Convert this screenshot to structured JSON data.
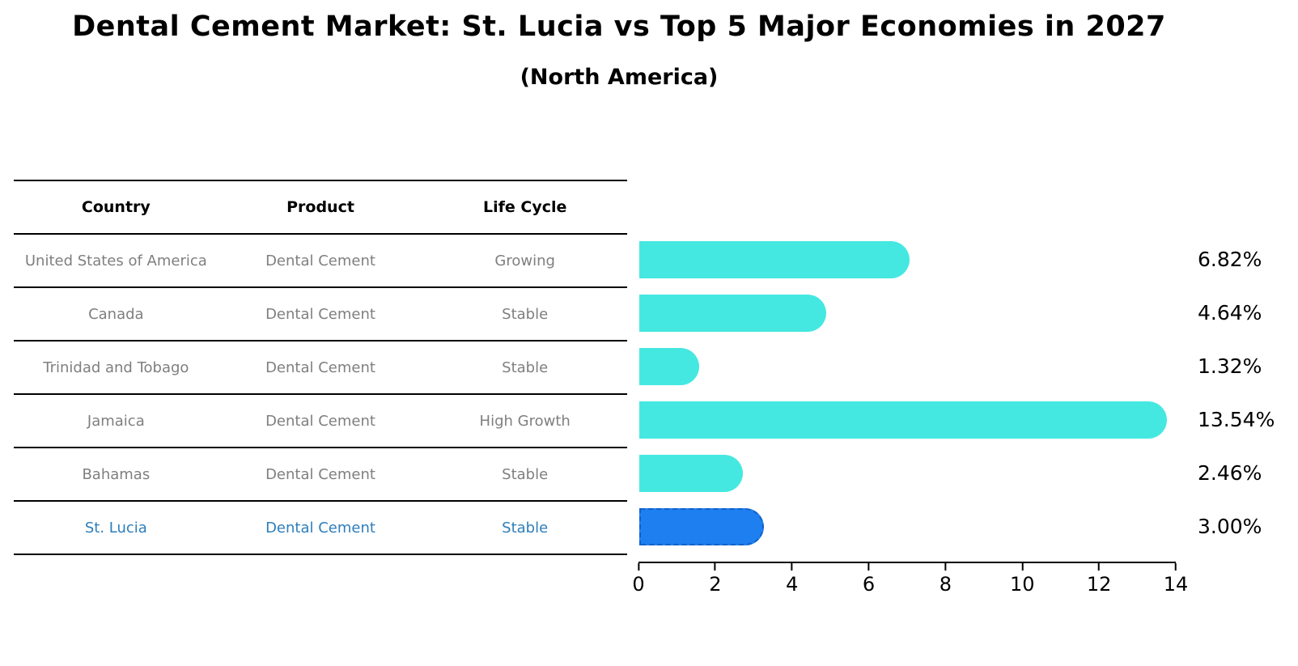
{
  "title": "Dental Cement Market: St. Lucia vs Top 5 Major Economies in 2027",
  "subtitle": "(North America)",
  "table": {
    "headers": [
      "Country",
      "Product",
      "Life Cycle"
    ],
    "rows": [
      {
        "country": "United States of America",
        "product": "Dental Cement",
        "life_cycle": "Growing"
      },
      {
        "country": "Canada",
        "product": "Dental Cement",
        "life_cycle": "Stable"
      },
      {
        "country": "Trinidad and Tobago",
        "product": "Dental Cement",
        "life_cycle": "Stable"
      },
      {
        "country": "Jamaica",
        "product": "Dental Cement",
        "life_cycle": "High Growth"
      },
      {
        "country": "Bahamas",
        "product": "Dental Cement",
        "life_cycle": "Stable"
      },
      {
        "country": "St. Lucia",
        "product": "Dental Cement",
        "life_cycle": "Stable"
      }
    ],
    "highlight_row": "St. Lucia"
  },
  "chart_data": {
    "type": "bar",
    "orientation": "horizontal",
    "categories": [
      "United States of America",
      "Canada",
      "Trinidad and Tobago",
      "Jamaica",
      "Bahamas",
      "St. Lucia"
    ],
    "values": [
      6.82,
      4.64,
      1.32,
      13.54,
      2.46,
      3.0
    ],
    "value_labels": [
      "6.82%",
      "4.64%",
      "1.32%",
      "13.54%",
      "2.46%",
      "3.00%"
    ],
    "highlight_index": 5,
    "xlim": [
      0,
      14
    ],
    "x_ticks": [
      "0",
      "2",
      "4",
      "6",
      "8",
      "10",
      "12",
      "14"
    ],
    "grid": false,
    "legend": "none",
    "xlabel": "",
    "ylabel": "",
    "colors": {
      "bar_default": "#45e8e0",
      "bar_highlight": "#1e80f0",
      "bar_highlight_border": "#1360c4",
      "highlight_text": "#2e7ebb",
      "table_text": "#7f7f7f",
      "header_text": "#000000"
    }
  }
}
